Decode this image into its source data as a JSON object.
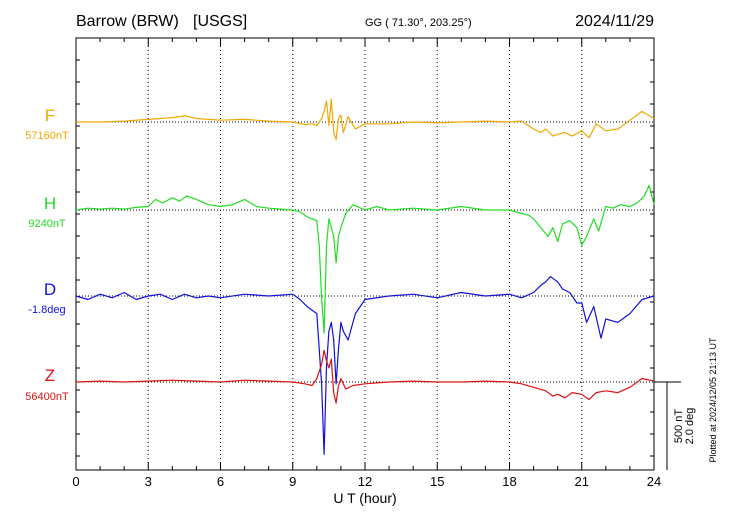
{
  "header": {
    "station": "Barrow (BRW)",
    "source": "[USGS]",
    "coords": "GG ( 71.30°, 203.25°)",
    "date": "2024/11/29"
  },
  "footer": {
    "plotted": "Plotted at 2024/12/05 21:13 UT"
  },
  "chart_data": {
    "type": "line",
    "xlabel": "U T (hour)",
    "xlim": [
      0,
      24
    ],
    "xticks": [
      "0",
      "3",
      "6",
      "9",
      "12",
      "15",
      "18",
      "21",
      "24"
    ],
    "grid": true,
    "scale_bar": {
      "nT": "500 nT",
      "deg": "2.0 deg"
    },
    "colors": {
      "F": "#f0a800",
      "H": "#22dd22",
      "D": "#1010dd",
      "Z": "#dd1111"
    },
    "series": [
      {
        "name": "F",
        "baseline_label": "57160nT",
        "unit": "nT",
        "x": [
          0,
          1,
          2,
          3,
          3.5,
          4,
          4.5,
          5,
          6,
          7,
          8,
          9,
          9.5,
          9.8,
          10,
          10.2,
          10.3,
          10.4,
          10.5,
          10.6,
          10.7,
          10.8,
          10.9,
          11,
          11.1,
          11.3,
          11.6,
          12,
          13,
          14,
          15,
          16,
          17,
          18,
          18.5,
          19,
          19.3,
          19.5,
          19.8,
          20,
          20.3,
          20.6,
          21,
          21.3,
          21.6,
          22,
          22.5,
          23,
          23.5,
          24
        ],
        "values": [
          0,
          0,
          5,
          15,
          20,
          25,
          35,
          20,
          10,
          15,
          5,
          0,
          -15,
          -10,
          -20,
          20,
          60,
          120,
          -20,
          130,
          -60,
          -100,
          20,
          40,
          -60,
          30,
          -40,
          -10,
          -10,
          0,
          -5,
          0,
          5,
          0,
          5,
          -40,
          -60,
          -40,
          -80,
          -70,
          -60,
          -80,
          -50,
          -90,
          -10,
          -50,
          -40,
          10,
          60,
          20
        ]
      },
      {
        "name": "H",
        "baseline_label": "9240nT",
        "unit": "nT",
        "x": [
          0,
          0.5,
          1,
          1.5,
          2,
          2.5,
          3,
          3.3,
          3.6,
          4,
          4.3,
          4.6,
          5,
          5.5,
          6,
          6.5,
          7,
          7.5,
          8,
          8.5,
          9,
          9.3,
          9.6,
          10,
          10.1,
          10.2,
          10.3,
          10.4,
          10.5,
          10.6,
          10.7,
          10.8,
          10.9,
          11,
          11.2,
          11.5,
          12,
          12.5,
          13,
          14,
          15,
          16,
          17,
          18,
          18.5,
          18.8,
          19,
          19.3,
          19.6,
          19.8,
          20,
          20.2,
          20.5,
          20.8,
          21,
          21.2,
          21.5,
          21.7,
          22,
          22.3,
          22.6,
          23,
          23.3,
          23.6,
          23.8,
          24
        ],
        "values": [
          0,
          10,
          5,
          10,
          5,
          15,
          20,
          60,
          40,
          70,
          50,
          80,
          60,
          30,
          20,
          30,
          60,
          20,
          10,
          5,
          0,
          -10,
          -40,
          -60,
          -200,
          -500,
          -700,
          -200,
          -50,
          -100,
          -150,
          -300,
          -150,
          -100,
          -20,
          30,
          0,
          20,
          0,
          10,
          0,
          20,
          0,
          0,
          -20,
          -30,
          -50,
          -100,
          -150,
          -100,
          -180,
          -80,
          -60,
          -100,
          -200,
          -150,
          -50,
          -120,
          20,
          10,
          30,
          20,
          40,
          80,
          140,
          30
        ]
      },
      {
        "name": "D",
        "baseline_label": "-1.8deg",
        "unit": "deg",
        "x": [
          0,
          0.5,
          1,
          1.5,
          2,
          2.5,
          3,
          3.5,
          4,
          4.5,
          5,
          5.5,
          6,
          7,
          8,
          9,
          9.3,
          9.6,
          10,
          10.1,
          10.2,
          10.3,
          10.4,
          10.5,
          10.6,
          10.7,
          10.8,
          10.9,
          11,
          11.1,
          11.3,
          11.6,
          12,
          13,
          14,
          15,
          16,
          17,
          18,
          18.5,
          19,
          19.3,
          19.5,
          19.7,
          19.9,
          20,
          20.2,
          20.5,
          20.8,
          21,
          21.2,
          21.5,
          21.8,
          22,
          22.5,
          23,
          23.5,
          24
        ],
        "values": [
          0,
          -20,
          10,
          -10,
          20,
          -20,
          0,
          10,
          -20,
          10,
          -10,
          0,
          -10,
          10,
          0,
          10,
          -20,
          -60,
          -100,
          -300,
          -500,
          -900,
          -400,
          -200,
          -150,
          -250,
          -500,
          -300,
          -150,
          -200,
          -250,
          -100,
          -20,
          0,
          10,
          -10,
          20,
          0,
          10,
          -10,
          20,
          60,
          80,
          110,
          90,
          80,
          40,
          20,
          -40,
          -40,
          -150,
          -60,
          -240,
          -130,
          -150,
          -100,
          -20,
          0
        ]
      },
      {
        "name": "Z",
        "baseline_label": "56400nT",
        "unit": "nT",
        "x": [
          0,
          1,
          2,
          3,
          4,
          5,
          6,
          7,
          8,
          9,
          9.5,
          9.8,
          10,
          10.2,
          10.3,
          10.4,
          10.5,
          10.6,
          10.7,
          10.8,
          10.9,
          11,
          11.2,
          11.5,
          12,
          13,
          14,
          15,
          16,
          17,
          18,
          18.5,
          19,
          19.5,
          19.8,
          20,
          20.3,
          20.6,
          21,
          21.3,
          21.6,
          22,
          22.5,
          23,
          23.5,
          24
        ],
        "values": [
          0,
          5,
          0,
          5,
          10,
          5,
          0,
          10,
          5,
          0,
          -10,
          -20,
          20,
          100,
          180,
          120,
          80,
          130,
          -60,
          -120,
          -20,
          20,
          -40,
          -20,
          -10,
          0,
          5,
          0,
          0,
          5,
          0,
          -10,
          -30,
          -50,
          -80,
          -70,
          -90,
          -60,
          -70,
          -100,
          -60,
          -50,
          -60,
          -30,
          20,
          5
        ]
      }
    ]
  }
}
